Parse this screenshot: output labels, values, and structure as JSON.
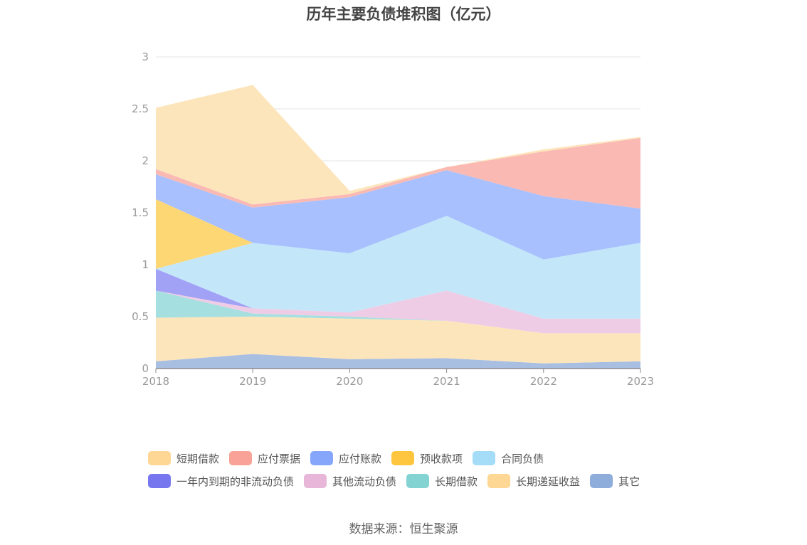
{
  "chart_data": {
    "type": "area",
    "title": "历年主要负债堆积图（亿元）",
    "x": [
      "2018",
      "2019",
      "2020",
      "2021",
      "2022",
      "2023"
    ],
    "ylim": [
      0,
      3
    ],
    "yticks": [
      "0",
      "0.5",
      "1",
      "1.5",
      "2",
      "2.5",
      "3"
    ],
    "grid": true,
    "legend_position": "bottom",
    "stacked": true,
    "series": [
      {
        "name": "其它",
        "color": "#a9bfe2",
        "values": [
          0.07,
          0.14,
          0.09,
          0.1,
          0.05,
          0.07
        ]
      },
      {
        "name": "长期递延收益",
        "color": "#fde5bb",
        "values": [
          0.42,
          0.36,
          0.39,
          0.36,
          0.29,
          0.27
        ]
      },
      {
        "name": "长期借款",
        "color": "#a6dfe0",
        "values": [
          0.26,
          0.03,
          0.02,
          0.0,
          0.0,
          0.0
        ]
      },
      {
        "name": "其他流动负债",
        "color": "#efcce5",
        "values": [
          0.0,
          0.05,
          0.04,
          0.29,
          0.14,
          0.14
        ]
      },
      {
        "name": "一年内到期的非流动负债",
        "color": "#a1a2f6",
        "values": [
          0.21,
          0.0,
          0.0,
          0.0,
          0.0,
          0.0
        ]
      },
      {
        "name": "合同负债",
        "color": "#c3e7f9",
        "values": [
          0.0,
          0.63,
          0.57,
          0.72,
          0.57,
          0.73
        ]
      },
      {
        "name": "预收款项",
        "color": "#fed775",
        "values": [
          0.67,
          0.0,
          0.0,
          0.0,
          0.0,
          0.0
        ]
      },
      {
        "name": "应付账款",
        "color": "#a8c0fd",
        "values": [
          0.24,
          0.34,
          0.54,
          0.44,
          0.61,
          0.33
        ]
      },
      {
        "name": "应付票据",
        "color": "#fab9b3",
        "values": [
          0.05,
          0.03,
          0.03,
          0.03,
          0.43,
          0.68
        ]
      },
      {
        "name": "短期借款",
        "color": "#fde5bb",
        "values": [
          0.59,
          1.15,
          0.03,
          0.0,
          0.02,
          0.01
        ]
      }
    ]
  },
  "legend": {
    "row1": [
      {
        "label": "短期借款",
        "color": "#fed794"
      },
      {
        "label": "应付票据",
        "color": "#f9a297"
      },
      {
        "label": "应付账款",
        "color": "#86a6fb"
      },
      {
        "label": "预收款项",
        "color": "#fec63f"
      },
      {
        "label": "合同负债",
        "color": "#a5dcf8"
      }
    ],
    "row2": [
      {
        "label": "一年内到期的非流动负债",
        "color": "#7677ef"
      },
      {
        "label": "其他流动负债",
        "color": "#e7b6d8"
      },
      {
        "label": "长期借款",
        "color": "#84d3d3"
      },
      {
        "label": "长期递延收益",
        "color": "#fed794"
      },
      {
        "label": "其它",
        "color": "#8eaddb"
      }
    ]
  },
  "source_note": "数据来源：恒生聚源"
}
